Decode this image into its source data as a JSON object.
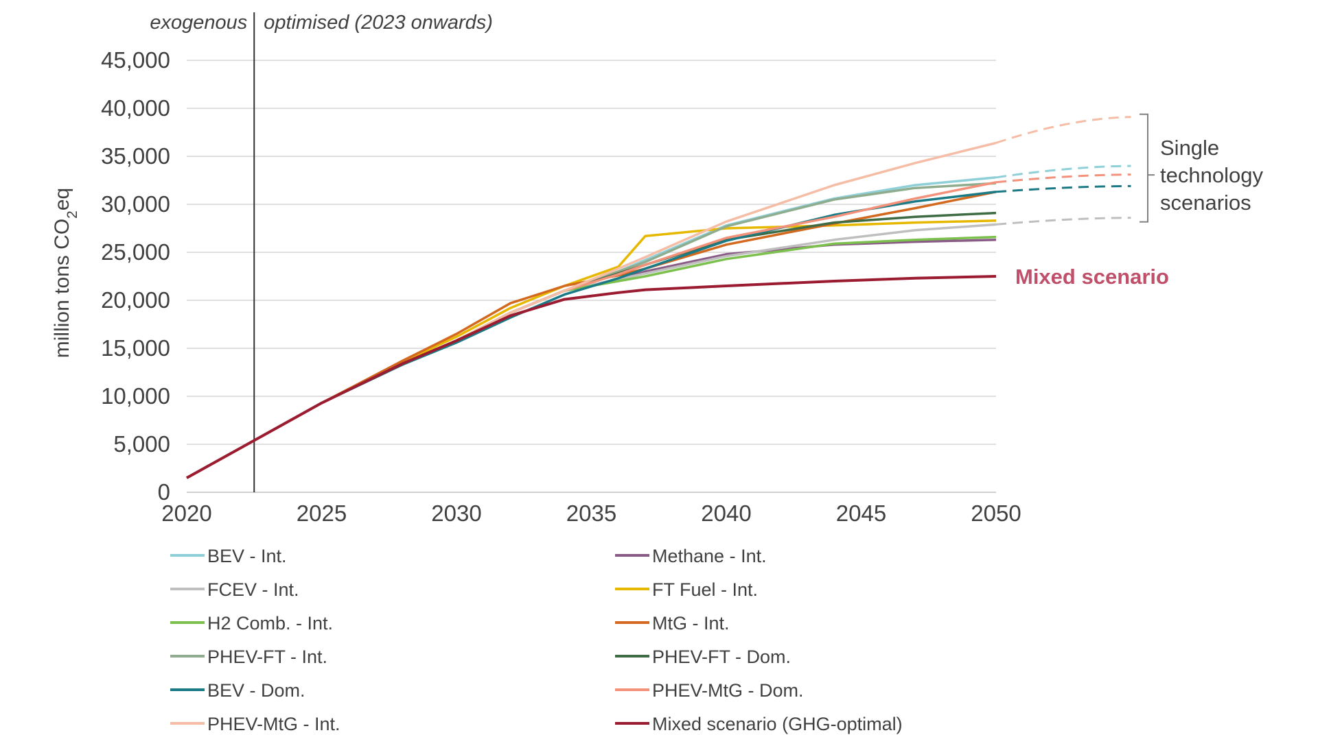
{
  "chart_data": {
    "type": "line",
    "ylabel": "million tons CO2eq",
    "ylim": [
      0,
      45000
    ],
    "yticks": [
      0,
      5000,
      10000,
      15000,
      20000,
      25000,
      30000,
      35000,
      40000,
      45000
    ],
    "ytick_labels": [
      "0",
      "5,000",
      "10,000",
      "15,000",
      "20,000",
      "25,000",
      "30,000",
      "35,000",
      "40,000",
      "45,000"
    ],
    "xlim": [
      2020,
      2050
    ],
    "xticks": [
      2020,
      2025,
      2030,
      2035,
      2040,
      2045,
      2050
    ],
    "xtick_labels": [
      "2020",
      "2025",
      "2030",
      "2035",
      "2040",
      "2045",
      "2050"
    ],
    "grid": "horizontal",
    "divider_year": 2022.5,
    "phase_left": "exogenous",
    "phase_right": "optimised (2023 onwards)",
    "annotation_single": [
      "Single",
      "technology",
      "scenarios"
    ],
    "annotation_mixed": "Mixed scenario",
    "x": [
      2020,
      2022.5,
      2025,
      2028,
      2030,
      2032,
      2034,
      2036,
      2037,
      2040,
      2044,
      2047,
      2050
    ],
    "series": [
      {
        "name": "BEV - Int.",
        "color": "#8ecfd8",
        "values": [
          1500,
          5400,
          9300,
          13400,
          15800,
          18700,
          21000,
          23000,
          24200,
          27800,
          30600,
          32000,
          32800
        ],
        "extension": {
          "x": [
            2050,
            2055
          ],
          "values": [
            32800,
            34000
          ]
        }
      },
      {
        "name": "Methane - Int.",
        "color": "#8a5a86",
        "values": [
          1500,
          5400,
          9300,
          13400,
          15800,
          18700,
          21000,
          22200,
          23000,
          24800,
          25800,
          26100,
          26300
        ]
      },
      {
        "name": "FCEV - Int.",
        "color": "#bfbfbf",
        "values": [
          1500,
          5400,
          9300,
          13400,
          15800,
          18700,
          21000,
          22200,
          22800,
          24600,
          26300,
          27300,
          27900
        ],
        "extension": {
          "x": [
            2050,
            2055
          ],
          "values": [
            27900,
            28600
          ]
        }
      },
      {
        "name": "FT Fuel - Int.",
        "color": "#e6b800",
        "values": [
          1500,
          5400,
          9300,
          13600,
          16200,
          19200,
          21500,
          23500,
          26700,
          27500,
          27800,
          28100,
          28300
        ]
      },
      {
        "name": "H2 Comb. - Int.",
        "color": "#7cc04e",
        "values": [
          1500,
          5400,
          9300,
          13400,
          15800,
          18700,
          21000,
          22000,
          22500,
          24300,
          25900,
          26300,
          26600
        ]
      },
      {
        "name": "MtG - Int.",
        "color": "#d2691e",
        "values": [
          1500,
          5400,
          9300,
          13700,
          16500,
          19700,
          21500,
          22600,
          23300,
          25800,
          28000,
          29600,
          31300
        ]
      },
      {
        "name": "PHEV-FT - Int.",
        "color": "#8fac8f",
        "values": [
          1500,
          5400,
          9300,
          13400,
          15800,
          18700,
          21000,
          23000,
          24000,
          27700,
          30500,
          31700,
          32200
        ]
      },
      {
        "name": "PHEV-FT - Dom.",
        "color": "#3f6b45",
        "values": [
          1500,
          5400,
          9300,
          13400,
          15800,
          18700,
          21000,
          22800,
          23700,
          26300,
          28100,
          28700,
          29100
        ]
      },
      {
        "name": "BEV - Dom.",
        "color": "#1a7a85",
        "values": [
          1500,
          5400,
          9300,
          13300,
          15600,
          18200,
          20600,
          22300,
          23300,
          26200,
          28900,
          30300,
          31300
        ],
        "extension": {
          "x": [
            2050,
            2055
          ],
          "values": [
            31300,
            31900
          ]
        }
      },
      {
        "name": "PHEV-MtG - Dom.",
        "color": "#f4917a",
        "values": [
          1500,
          5400,
          9300,
          13400,
          15800,
          18700,
          21000,
          22700,
          23700,
          26500,
          28700,
          30600,
          32300
        ],
        "extension": {
          "x": [
            2050,
            2055
          ],
          "values": [
            32300,
            33100
          ]
        }
      },
      {
        "name": "PHEV-MtG - Int.",
        "color": "#f5bda5",
        "values": [
          1500,
          5400,
          9300,
          13400,
          15800,
          18700,
          21000,
          23300,
          24500,
          28200,
          32000,
          34300,
          36400
        ],
        "extension": {
          "x": [
            2050,
            2055
          ],
          "values": [
            36400,
            39100
          ]
        }
      },
      {
        "name": "Mixed scenario (GHG-optimal)",
        "color": "#9b1b30",
        "values": [
          1500,
          5400,
          9300,
          13400,
          15800,
          18400,
          20100,
          20800,
          21100,
          21500,
          22000,
          22300,
          22500
        ]
      }
    ],
    "legend_order": [
      0,
      1,
      2,
      3,
      4,
      5,
      6,
      7,
      8,
      9,
      10,
      11
    ],
    "mixed_label_color": "#c0506a"
  }
}
